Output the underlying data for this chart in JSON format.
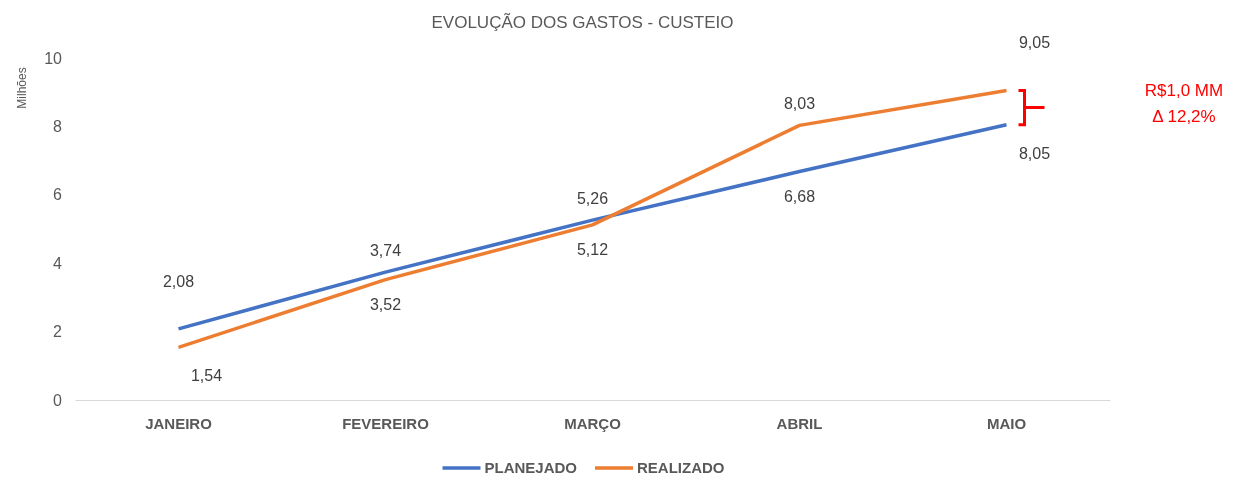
{
  "chart_data": {
    "type": "line",
    "title": "EVOLUÇÃO DOS GASTOS - CUSTEIO",
    "ylabel": "Milhões",
    "categories": [
      "JANEIRO",
      "FEVEREIRO",
      "MARÇO",
      "ABRIL",
      "MAIO"
    ],
    "series": [
      {
        "name": "PLANEJADO",
        "color": "#4472c4",
        "values": [
          2.08,
          3.74,
          5.26,
          6.68,
          8.05
        ],
        "value_labels": [
          "2,08",
          "3,74",
          "5,26",
          "6,68",
          "8,05"
        ]
      },
      {
        "name": "REALIZADO",
        "color": "#ed7d31",
        "values": [
          1.54,
          3.52,
          5.12,
          8.03,
          9.05
        ],
        "value_labels": [
          "1,54",
          "3,52",
          "5,12",
          "8,03",
          "9,05"
        ]
      }
    ],
    "ylim": [
      0,
      10
    ],
    "yticks": [
      0,
      2,
      4,
      6,
      8,
      10
    ],
    "grid": false,
    "legend": "bottom",
    "marker": "none",
    "line_style": "solid",
    "annotations": [
      "R$1,0 MM",
      "Δ 12,2%"
    ]
  }
}
